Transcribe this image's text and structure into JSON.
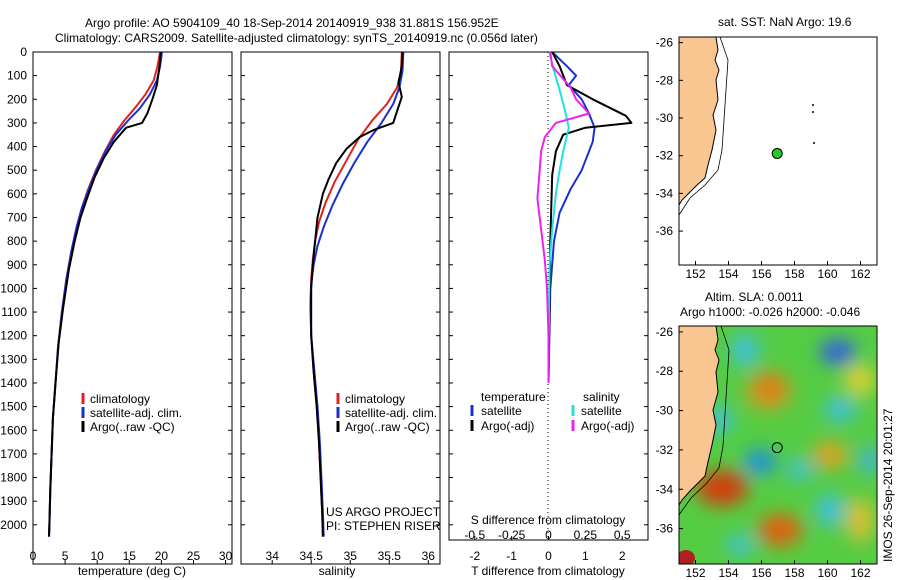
{
  "header": {
    "line1": "Argo profile: AO 5904109_40 18-Sep-2014 20140919_938 31.881S 156.952E",
    "line2": "Climatology: CARS2009. Satellite-adjusted climatology: synTS_20140919.nc (0.056d later)"
  },
  "colors": {
    "clim": "#e02020",
    "sat": "#1a2fd0",
    "argo": "#000000",
    "sat_s": "#20e0e0",
    "argo_s": "#ee22ee",
    "land": "#f9c590"
  },
  "y_axis": {
    "ticks": [
      0,
      100,
      200,
      300,
      400,
      500,
      600,
      700,
      800,
      900,
      1000,
      1100,
      1200,
      1300,
      1400,
      1500,
      1600,
      1700,
      1800,
      1900,
      2000
    ],
    "range": [
      0,
      2060
    ]
  },
  "chart_data": [
    {
      "type": "line",
      "id": "temperature",
      "xlabel": "temperature (deg C)",
      "xlim": [
        0,
        31
      ],
      "xticks": [
        {
          "v": 0,
          "t": "0"
        },
        {
          "v": 5,
          "t": "5"
        },
        {
          "v": 10,
          "t": "10"
        },
        {
          "v": 15,
          "t": "15"
        },
        {
          "v": 20,
          "t": "20"
        },
        {
          "v": 25,
          "t": "25"
        },
        {
          "v": 30,
          "t": "30"
        }
      ],
      "series": [
        {
          "name": "climatology",
          "color": "clim",
          "points": [
            [
              19.8,
              0
            ],
            [
              19.4,
              60
            ],
            [
              18.8,
              120
            ],
            [
              17.5,
              180
            ],
            [
              15.8,
              240
            ],
            [
              14.2,
              290
            ],
            [
              12.6,
              350
            ],
            [
              11.2,
              420
            ],
            [
              9.8,
              500
            ],
            [
              8.6,
              580
            ],
            [
              7.6,
              660
            ],
            [
              6.8,
              740
            ],
            [
              6.0,
              840
            ],
            [
              5.2,
              960
            ],
            [
              4.5,
              1100
            ],
            [
              3.9,
              1250
            ],
            [
              3.5,
              1400
            ],
            [
              3.1,
              1550
            ],
            [
              2.9,
              1700
            ],
            [
              2.7,
              1850
            ],
            [
              2.55,
              2000
            ],
            [
              2.5,
              2050
            ]
          ]
        },
        {
          "name": "satellite-adj. clim.",
          "color": "sat",
          "points": [
            [
              20.1,
              0
            ],
            [
              19.8,
              60
            ],
            [
              19.3,
              120
            ],
            [
              18.2,
              180
            ],
            [
              16.6,
              240
            ],
            [
              14.8,
              290
            ],
            [
              12.9,
              350
            ],
            [
              11.3,
              420
            ],
            [
              9.9,
              500
            ],
            [
              8.7,
              580
            ],
            [
              7.6,
              660
            ],
            [
              6.8,
              740
            ],
            [
              6.0,
              840
            ],
            [
              5.2,
              960
            ],
            [
              4.5,
              1100
            ],
            [
              3.9,
              1250
            ],
            [
              3.5,
              1400
            ],
            [
              3.1,
              1550
            ],
            [
              2.9,
              1700
            ],
            [
              2.7,
              1850
            ],
            [
              2.55,
              2000
            ],
            [
              2.5,
              2050
            ]
          ]
        },
        {
          "name": "Argo(..raw -QC)",
          "color": "argo",
          "points": [
            [
              19.9,
              0
            ],
            [
              19.7,
              60
            ],
            [
              19.3,
              140
            ],
            [
              18.6,
              200
            ],
            [
              17.8,
              260
            ],
            [
              17.0,
              300
            ],
            [
              14.5,
              320
            ],
            [
              12.6,
              380
            ],
            [
              11.0,
              450
            ],
            [
              9.6,
              530
            ],
            [
              8.4,
              620
            ],
            [
              7.4,
              700
            ],
            [
              6.5,
              800
            ],
            [
              5.6,
              920
            ],
            [
              4.7,
              1080
            ],
            [
              4.0,
              1230
            ],
            [
              3.5,
              1400
            ],
            [
              3.1,
              1550
            ],
            [
              2.9,
              1700
            ],
            [
              2.7,
              1850
            ],
            [
              2.55,
              2000
            ],
            [
              2.5,
              2050
            ]
          ]
        }
      ],
      "legend": [
        "climatology",
        "satellite-adj. clim.",
        "Argo(..raw -QC)"
      ]
    },
    {
      "type": "line",
      "id": "salinity",
      "xlabel": "salinity",
      "xlim": [
        33.6,
        36.15
      ],
      "xticks": [
        {
          "v": 34,
          "t": "34"
        },
        {
          "v": 34.5,
          "t": "34.5"
        },
        {
          "v": 35,
          "t": "35"
        },
        {
          "v": 35.5,
          "t": "35.5"
        },
        {
          "v": 36,
          "t": "36"
        }
      ],
      "series": [
        {
          "name": "climatology",
          "color": "clim",
          "points": [
            [
              35.66,
              0
            ],
            [
              35.65,
              80
            ],
            [
              35.6,
              150
            ],
            [
              35.47,
              220
            ],
            [
              35.28,
              290
            ],
            [
              35.1,
              370
            ],
            [
              34.95,
              460
            ],
            [
              34.8,
              550
            ],
            [
              34.68,
              640
            ],
            [
              34.6,
              720
            ],
            [
              34.55,
              800
            ],
            [
              34.52,
              880
            ],
            [
              34.5,
              960
            ],
            [
              34.49,
              1060
            ],
            [
              34.5,
              1200
            ],
            [
              34.53,
              1350
            ],
            [
              34.57,
              1500
            ],
            [
              34.6,
              1650
            ],
            [
              34.62,
              1800
            ],
            [
              34.64,
              1950
            ],
            [
              34.65,
              2050
            ]
          ]
        },
        {
          "name": "satellite-adj. clim.",
          "color": "sat",
          "points": [
            [
              35.68,
              0
            ],
            [
              35.67,
              80
            ],
            [
              35.63,
              150
            ],
            [
              35.55,
              220
            ],
            [
              35.4,
              300
            ],
            [
              35.22,
              380
            ],
            [
              35.05,
              470
            ],
            [
              34.9,
              560
            ],
            [
              34.77,
              650
            ],
            [
              34.66,
              740
            ],
            [
              34.58,
              820
            ],
            [
              34.53,
              900
            ],
            [
              34.5,
              980
            ],
            [
              34.49,
              1080
            ],
            [
              34.5,
              1200
            ],
            [
              34.54,
              1350
            ],
            [
              34.58,
              1500
            ],
            [
              34.61,
              1650
            ],
            [
              34.63,
              1800
            ],
            [
              34.65,
              1950
            ],
            [
              34.66,
              2050
            ]
          ]
        },
        {
          "name": "Argo(..raw -QC)",
          "color": "argo",
          "points": [
            [
              35.67,
              0
            ],
            [
              35.66,
              60
            ],
            [
              35.62,
              130
            ],
            [
              35.66,
              190
            ],
            [
              35.6,
              250
            ],
            [
              35.55,
              300
            ],
            [
              35.3,
              330
            ],
            [
              35.12,
              360
            ],
            [
              34.95,
              410
            ],
            [
              34.82,
              470
            ],
            [
              34.72,
              540
            ],
            [
              34.65,
              600
            ],
            [
              34.58,
              700
            ],
            [
              34.55,
              800
            ],
            [
              34.52,
              900
            ],
            [
              34.5,
              1000
            ],
            [
              34.5,
              1200
            ],
            [
              34.53,
              1350
            ],
            [
              34.57,
              1500
            ],
            [
              34.6,
              1650
            ],
            [
              34.62,
              1800
            ],
            [
              34.64,
              1950
            ],
            [
              34.65,
              2050
            ]
          ]
        }
      ],
      "legend": [
        "climatology",
        "satellite-adj. clim.",
        "Argo(..raw -QC)"
      ],
      "credit": [
        "US ARGO PROJECT",
        "PI: STEPHEN RISER"
      ]
    },
    {
      "type": "line",
      "id": "difference",
      "xlabel_top": "S difference from climatology",
      "xlabel": "T difference from climatology",
      "xlim": [
        -2.7,
        2.7
      ],
      "xticks_top": [
        {
          "v": -0.5,
          "t": "-0.5"
        },
        {
          "v": -0.25,
          "t": "-0.25"
        },
        {
          "v": 0,
          "t": "0"
        },
        {
          "v": 0.25,
          "t": "0.25"
        },
        {
          "v": 0.5,
          "t": "0.5"
        }
      ],
      "xticks_top_scale": 4,
      "xticks": [
        {
          "v": -2,
          "t": "-2"
        },
        {
          "v": -1,
          "t": "-1"
        },
        {
          "v": 0,
          "t": "0"
        },
        {
          "v": 1,
          "t": "1"
        },
        {
          "v": 2,
          "t": "2"
        }
      ],
      "series": [
        {
          "name": "temperature satellite",
          "color": "sat",
          "points": [
            [
              0.1,
              0
            ],
            [
              0.5,
              60
            ],
            [
              0.75,
              100
            ],
            [
              0.55,
              140
            ],
            [
              0.9,
              200
            ],
            [
              1.1,
              260
            ],
            [
              1.25,
              320
            ],
            [
              1.2,
              380
            ],
            [
              1.05,
              440
            ],
            [
              0.9,
              500
            ],
            [
              0.6,
              580
            ],
            [
              0.3,
              680
            ],
            [
              0.15,
              800
            ],
            [
              0.05,
              1000
            ],
            [
              0,
              1400
            ]
          ]
        },
        {
          "name": "temperature Argo(-adj)",
          "color": "argo",
          "points": [
            [
              0.1,
              0
            ],
            [
              0.3,
              60
            ],
            [
              0.5,
              140
            ],
            [
              1.2,
              200
            ],
            [
              2.1,
              270
            ],
            [
              2.25,
              300
            ],
            [
              1.0,
              320
            ],
            [
              0.4,
              350
            ],
            [
              0.2,
              420
            ],
            [
              0.1,
              520
            ],
            [
              0.05,
              800
            ],
            [
              0,
              1400
            ]
          ]
        },
        {
          "name": "salinity satellite",
          "color": "sat_s",
          "points": [
            [
              0.02,
              0
            ],
            [
              0.15,
              80
            ],
            [
              0.3,
              160
            ],
            [
              0.45,
              250
            ],
            [
              0.55,
              320
            ],
            [
              0.4,
              420
            ],
            [
              0.28,
              520
            ],
            [
              0.2,
              600
            ],
            [
              0.1,
              750
            ],
            [
              0.03,
              900
            ],
            [
              0.01,
              1100
            ],
            [
              0,
              1400
            ]
          ]
        },
        {
          "name": "salinity Argo(-adj)",
          "color": "argo_s",
          "points": [
            [
              0.05,
              0
            ],
            [
              0.1,
              60
            ],
            [
              0.6,
              150
            ],
            [
              0.75,
              200
            ],
            [
              1.1,
              260
            ],
            [
              0.2,
              300
            ],
            [
              -0.1,
              360
            ],
            [
              -0.2,
              420
            ],
            [
              -0.25,
              520
            ],
            [
              -0.3,
              620
            ],
            [
              -0.2,
              750
            ],
            [
              -0.1,
              880
            ],
            [
              -0.04,
              1000
            ],
            [
              0,
              1200
            ],
            [
              0,
              1400
            ]
          ]
        }
      ],
      "legend_temp": {
        "title": "temperature",
        "items": [
          "satellite",
          "Argo(-adj)"
        ]
      },
      "legend_sal": {
        "title": "salinity",
        "items": [
          "satellite",
          "Argo(-adj)"
        ]
      }
    },
    {
      "type": "heatmap",
      "id": "sst_map",
      "title": "sat. SST: NaN Argo: 19.6",
      "xticks": [
        152,
        154,
        156,
        158,
        160,
        162
      ],
      "yticks": [
        -26,
        -28,
        -30,
        -32,
        -34,
        -36
      ],
      "xlim": [
        151,
        163
      ],
      "ylim": [
        -37.8,
        -25.7
      ],
      "argo_position": [
        156.952,
        -31.881
      ]
    },
    {
      "type": "heatmap",
      "id": "sla_map",
      "title": "Altim. SLA: 0.0011",
      "subtitle": "Argo h1000: -0.026 h2000: -0.046",
      "xticks": [
        152,
        154,
        156,
        158,
        160,
        162
      ],
      "yticks": [
        -26,
        -28,
        -30,
        -32,
        -34,
        -36
      ],
      "xlim": [
        151,
        163
      ],
      "ylim": [
        -37.8,
        -25.7
      ],
      "argo_position": [
        156.952,
        -31.881
      ]
    }
  ],
  "timestamp": "IMOS 26-Sep-2014 20:01:27"
}
